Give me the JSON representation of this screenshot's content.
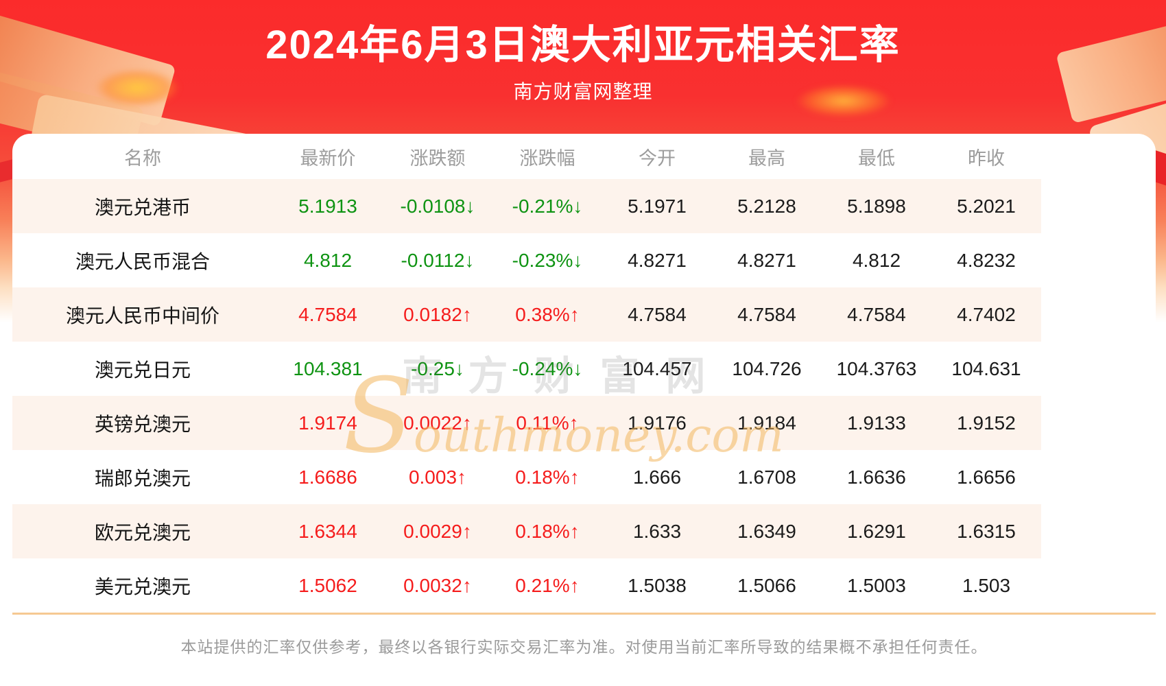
{
  "banner": {
    "title": "2024年6月3日澳大利亚元相关汇率",
    "subtitle": "南方财富网整理"
  },
  "chart_data": {
    "type": "table",
    "title": "2024年6月3日澳大利亚元相关汇率",
    "columns": [
      "名称",
      "最新价",
      "涨跌额",
      "涨跌幅",
      "今开",
      "最高",
      "最低",
      "昨收"
    ],
    "rows": [
      {
        "name": "澳元兑港币",
        "direction": "down",
        "latest": "5.1913",
        "change": "-0.0108↓",
        "pct": "-0.21%↓",
        "open": "5.1971",
        "high": "5.2128",
        "low": "5.1898",
        "prev": "5.2021"
      },
      {
        "name": "澳元人民币混合",
        "direction": "down",
        "latest": "4.812",
        "change": "-0.0112↓",
        "pct": "-0.23%↓",
        "open": "4.8271",
        "high": "4.8271",
        "low": "4.812",
        "prev": "4.8232"
      },
      {
        "name": "澳元人民币中间价",
        "direction": "up",
        "latest": "4.7584",
        "change": "0.0182↑",
        "pct": "0.38%↑",
        "open": "4.7584",
        "high": "4.7584",
        "low": "4.7584",
        "prev": "4.7402"
      },
      {
        "name": "澳元兑日元",
        "direction": "down",
        "latest": "104.381",
        "change": "-0.25↓",
        "pct": "-0.24%↓",
        "open": "104.457",
        "high": "104.726",
        "low": "104.3763",
        "prev": "104.631"
      },
      {
        "name": "英镑兑澳元",
        "direction": "up",
        "latest": "1.9174",
        "change": "0.0022↑",
        "pct": "0.11%↑",
        "open": "1.9176",
        "high": "1.9184",
        "low": "1.9133",
        "prev": "1.9152"
      },
      {
        "name": "瑞郎兑澳元",
        "direction": "up",
        "latest": "1.6686",
        "change": "0.003↑",
        "pct": "0.18%↑",
        "open": "1.666",
        "high": "1.6708",
        "low": "1.6636",
        "prev": "1.6656"
      },
      {
        "name": "欧元兑澳元",
        "direction": "up",
        "latest": "1.6344",
        "change": "0.0029↑",
        "pct": "0.18%↑",
        "open": "1.633",
        "high": "1.6349",
        "low": "1.6291",
        "prev": "1.6315"
      },
      {
        "name": "美元兑澳元",
        "direction": "up",
        "latest": "1.5062",
        "change": "0.0032↑",
        "pct": "0.21%↑",
        "open": "1.5038",
        "high": "1.5066",
        "low": "1.5003",
        "prev": "1.503"
      }
    ]
  },
  "watermark": {
    "cn": "南方财富网",
    "en": "Southmoney.com"
  },
  "footer": {
    "disclaimer": "本站提供的汇率仅供参考，最终以各银行实际交易汇率为准。对使用当前汇率所导致的结果概不承担任何责任。"
  },
  "colors": {
    "banner_red": "#fb2b2b",
    "up": "#f51c1c",
    "down": "#0e9312",
    "stripe": "#fdf3ec",
    "divider": "#f6c992",
    "header_text": "#9c9c9c",
    "value_text": "#1b1b1b"
  }
}
